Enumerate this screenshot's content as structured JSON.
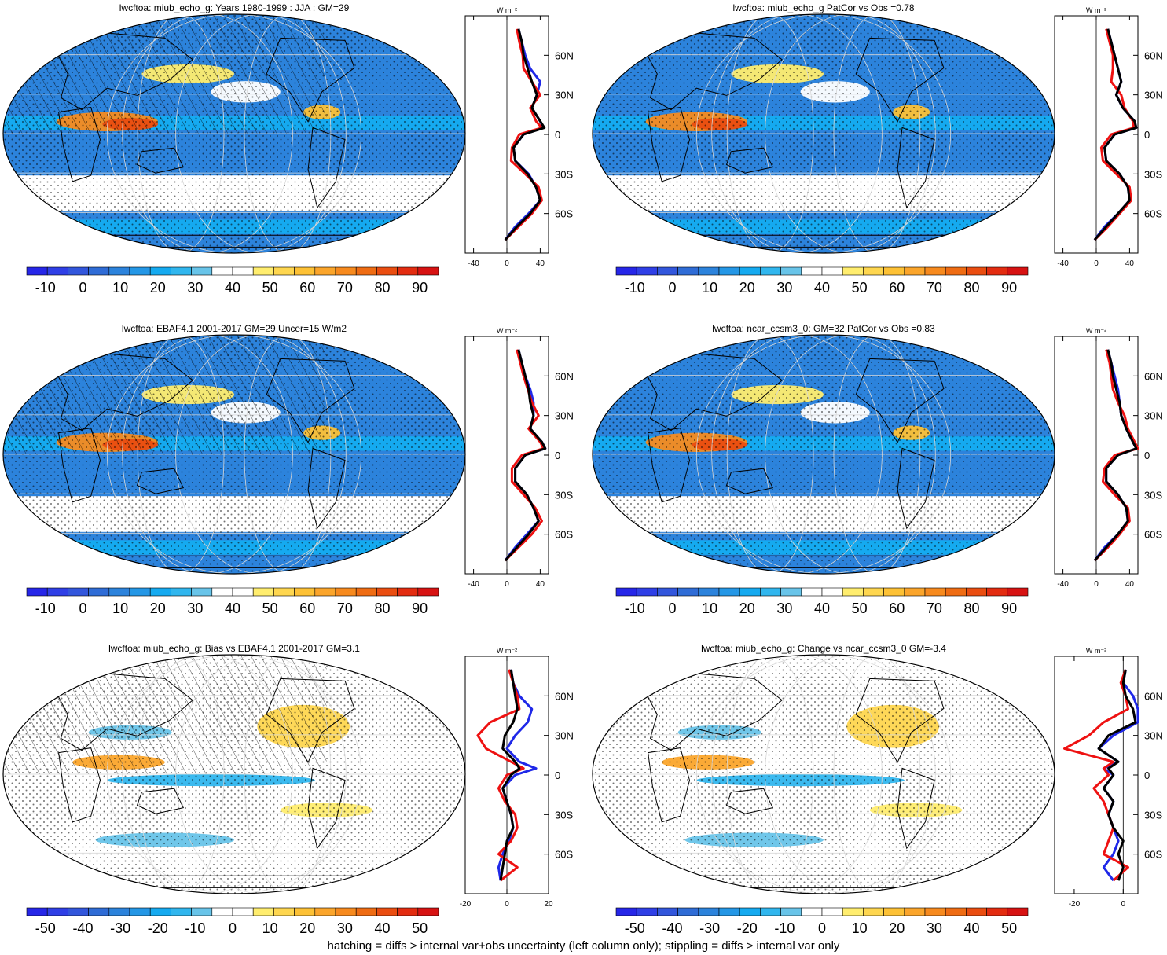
{
  "footer": "hatching = diffs > internal var+obs uncertainty (left column only); stippling = diffs > internal var only",
  "colors": {
    "obs": "#000000",
    "model_a": "#ee1111",
    "model_b": "#1f28e8",
    "grid": "#d8d8d8"
  },
  "palette_abs": [
    "#2626e8",
    "#2f3fe6",
    "#3256dc",
    "#2f6cd6",
    "#2c83dc",
    "#2497e6",
    "#15aaf0",
    "#30b6ee",
    "#68c4e9",
    "#ffffff",
    "#ffffff",
    "#ffed6e",
    "#fed64f",
    "#fdc135",
    "#fba52b",
    "#f78a1e",
    "#ef6c13",
    "#ea4d10",
    "#e32c10",
    "#d71212"
  ],
  "palette_diff": [
    "#2626e8",
    "#2f3fe6",
    "#3256dc",
    "#2f6cd6",
    "#2c83dc",
    "#2497e6",
    "#15aaf0",
    "#30b6ee",
    "#68c4e9",
    "#ffffff",
    "#ffffff",
    "#ffed6e",
    "#fed64f",
    "#fdc135",
    "#fba52b",
    "#f78a1e",
    "#ef6c13",
    "#ea4d10",
    "#e32c10",
    "#d71212"
  ],
  "chart_data": [
    {
      "id": "p1",
      "type": "heatmap",
      "title": "lwcftoa: miub_echo_g: Years 1980-1999 : JJA : GM=29",
      "colorbar": {
        "ticks": [
          "-10",
          "0",
          "10",
          "20",
          "30",
          "40",
          "50",
          "60",
          "70",
          "80",
          "90"
        ],
        "range": [
          -15,
          95
        ]
      },
      "profile": {
        "xlabel": "W m⁻²",
        "xticks": [
          "-40",
          "0",
          "40"
        ],
        "xlim": [
          -50,
          50
        ],
        "yticks": [
          "60N",
          "30N",
          "0",
          "30S",
          "60S"
        ],
        "lat": [
          80,
          70,
          60,
          50,
          40,
          30,
          20,
          10,
          5,
          0,
          -10,
          -20,
          -30,
          -40,
          -50,
          -60,
          -70,
          -80
        ],
        "series": [
          {
            "name": "obs",
            "values": [
              14,
              18,
              20,
              25,
              30,
              36,
              30,
              40,
              45,
              20,
              8,
              10,
              25,
              35,
              40,
              28,
              12,
              -2
            ]
          },
          {
            "name": "model_a",
            "values": [
              12,
              15,
              19,
              20,
              30,
              40,
              28,
              35,
              42,
              15,
              6,
              5,
              22,
              38,
              42,
              30,
              14,
              -2
            ]
          },
          {
            "name": "model_b",
            "values": [
              14,
              18,
              22,
              28,
              40,
              36,
              30,
              40,
              44,
              20,
              8,
              10,
              26,
              35,
              40,
              26,
              10,
              -2
            ]
          }
        ]
      }
    },
    {
      "id": "p2",
      "type": "heatmap",
      "title": "lwcftoa: miub_echo_g PatCor vs Obs =0.78",
      "colorbar": {
        "ticks": [
          "-10",
          "0",
          "10",
          "20",
          "30",
          "40",
          "50",
          "60",
          "70",
          "80",
          "90"
        ],
        "range": [
          -15,
          95
        ]
      },
      "profile": {
        "xlabel": "W m⁻²",
        "xticks": [
          "-40",
          "0",
          "40"
        ],
        "xlim": [
          -50,
          50
        ],
        "yticks": [
          "60N",
          "30N",
          "0",
          "30S",
          "60S"
        ],
        "lat": [
          80,
          70,
          60,
          50,
          40,
          30,
          20,
          10,
          5,
          0,
          -10,
          -20,
          -30,
          -40,
          -50,
          -60,
          -70,
          -80
        ],
        "series": [
          {
            "name": "obs",
            "values": [
              14,
              18,
              22,
              26,
              30,
              24,
              32,
              46,
              48,
              22,
              10,
              12,
              28,
              38,
              40,
              26,
              12,
              -2
            ]
          },
          {
            "name": "model_a",
            "values": [
              12,
              16,
              20,
              20,
              18,
              30,
              34,
              44,
              45,
              18,
              6,
              8,
              24,
              40,
              42,
              28,
              14,
              -2
            ]
          },
          {
            "name": "model_b",
            "values": [
              14,
              18,
              22,
              26,
              30,
              24,
              32,
              46,
              48,
              22,
              10,
              12,
              28,
              38,
              40,
              26,
              10,
              -2
            ]
          }
        ]
      }
    },
    {
      "id": "p3",
      "type": "heatmap",
      "title": "lwcftoa: EBAF4.1 2001-2017 GM=29 Uncer=15 W/m2",
      "colorbar": {
        "ticks": [
          "-10",
          "0",
          "10",
          "20",
          "30",
          "40",
          "50",
          "60",
          "70",
          "80",
          "90"
        ],
        "range": [
          -15,
          95
        ]
      },
      "profile": {
        "xlabel": "W m⁻²",
        "xticks": [
          "-40",
          "0",
          "40"
        ],
        "xlim": [
          -50,
          50
        ],
        "yticks": [
          "60N",
          "30N",
          "0",
          "30S",
          "60S"
        ],
        "lat": [
          80,
          70,
          60,
          50,
          40,
          30,
          20,
          10,
          5,
          0,
          -10,
          -20,
          -30,
          -40,
          -50,
          -60,
          -70,
          -80
        ],
        "series": [
          {
            "name": "obs",
            "values": [
              14,
              18,
              22,
              26,
              28,
              32,
              28,
              42,
              46,
              22,
              10,
              10,
              24,
              32,
              38,
              26,
              12,
              -2
            ]
          },
          {
            "name": "model_a",
            "values": [
              12,
              16,
              20,
              25,
              30,
              38,
              26,
              40,
              44,
              18,
              6,
              6,
              20,
              34,
              42,
              30,
              14,
              -2
            ]
          },
          {
            "name": "model_b",
            "values": [
              14,
              18,
              22,
              28,
              32,
              32,
              28,
              42,
              46,
              22,
              10,
              10,
              24,
              32,
              38,
              24,
              10,
              -2
            ]
          }
        ]
      }
    },
    {
      "id": "p4",
      "type": "heatmap",
      "title": "lwcftoa: ncar_ccsm3_0: GM=32 PatCor vs Obs =0.83",
      "colorbar": {
        "ticks": [
          "-10",
          "0",
          "10",
          "20",
          "30",
          "40",
          "50",
          "60",
          "70",
          "80",
          "90"
        ],
        "range": [
          -15,
          95
        ]
      },
      "profile": {
        "xlabel": "W m⁻²",
        "xticks": [
          "-40",
          "0",
          "40"
        ],
        "xlim": [
          -50,
          50
        ],
        "yticks": [
          "60N",
          "30N",
          "0",
          "30S",
          "60S"
        ],
        "lat": [
          80,
          70,
          60,
          50,
          40,
          30,
          20,
          10,
          5,
          0,
          -10,
          -20,
          -30,
          -40,
          -50,
          -60,
          -70,
          -80
        ],
        "series": [
          {
            "name": "obs",
            "values": [
              14,
              18,
              20,
              24,
              28,
              30,
              36,
              44,
              48,
              26,
              12,
              12,
              26,
              36,
              38,
              26,
              12,
              -2
            ]
          },
          {
            "name": "model_a",
            "values": [
              12,
              16,
              18,
              20,
              26,
              34,
              38,
              46,
              50,
              22,
              10,
              8,
              22,
              38,
              40,
              28,
              14,
              -2
            ]
          },
          {
            "name": "model_b",
            "values": [
              14,
              18,
              22,
              26,
              28,
              30,
              36,
              44,
              48,
              26,
              12,
              12,
              26,
              36,
              38,
              26,
              10,
              -2
            ]
          }
        ]
      }
    },
    {
      "id": "p5",
      "type": "heatmap",
      "title": "lwcftoa: miub_echo_g: Bias vs EBAF4.1 2001-2017 GM=3.1",
      "colorbar": {
        "ticks": [
          "-50",
          "-40",
          "-30",
          "-20",
          "-10",
          "0",
          "10",
          "20",
          "30",
          "40",
          "50"
        ],
        "range": [
          -55,
          55
        ]
      },
      "profile": {
        "xlabel": "W m⁻²",
        "xticks": [
          "-20",
          "0",
          "20"
        ],
        "xlim": [
          -20,
          20
        ],
        "yticks": [
          "60N",
          "30N",
          "0",
          "30S",
          "60S"
        ],
        "lat": [
          80,
          70,
          60,
          50,
          40,
          30,
          20,
          10,
          5,
          0,
          -10,
          -20,
          -30,
          -40,
          -50,
          -60,
          -70,
          -80
        ],
        "series": [
          {
            "name": "obs",
            "values": [
              2,
              3,
              4,
              5,
              3,
              -1,
              -2,
              4,
              6,
              2,
              -2,
              0,
              2,
              3,
              0,
              -1,
              -2,
              -3
            ]
          },
          {
            "name": "model_a",
            "values": [
              1,
              3,
              5,
              6,
              -8,
              -14,
              -10,
              2,
              8,
              0,
              -4,
              -1,
              4,
              5,
              2,
              -4,
              5,
              -3
            ]
          },
          {
            "name": "model_b",
            "values": [
              2,
              3,
              6,
              12,
              10,
              4,
              0,
              6,
              14,
              4,
              -2,
              0,
              2,
              3,
              1,
              -2,
              -4,
              -3
            ]
          }
        ]
      }
    },
    {
      "id": "p6",
      "type": "heatmap",
      "title": "lwcftoa: miub_echo_g: Change vs ncar_ccsm3_0 GM=-3.4",
      "colorbar": {
        "ticks": [
          "-50",
          "-40",
          "-30",
          "-20",
          "-10",
          "0",
          "10",
          "20",
          "30",
          "40",
          "50"
        ],
        "range": [
          -55,
          55
        ]
      },
      "profile": {
        "xlabel": "W m⁻²",
        "xticks": [
          "-20",
          "0"
        ],
        "xlim": [
          -28,
          6
        ],
        "yticks": [
          "60N",
          "30N",
          "0",
          "30S",
          "60S"
        ],
        "lat": [
          80,
          70,
          60,
          50,
          40,
          30,
          20,
          10,
          5,
          0,
          -10,
          -20,
          -30,
          -40,
          -50,
          -60,
          -70,
          -80
        ],
        "series": [
          {
            "name": "obs",
            "values": [
              1,
              0,
              1,
              4,
              5,
              -6,
              -10,
              -2,
              -6,
              -4,
              -8,
              -4,
              -6,
              -4,
              0,
              -2,
              0,
              -2
            ]
          },
          {
            "name": "model_a",
            "values": [
              1,
              -1,
              1,
              2,
              -8,
              -14,
              -24,
              -4,
              -8,
              -6,
              -12,
              -8,
              -6,
              -4,
              -6,
              -8,
              2,
              -4
            ]
          },
          {
            "name": "model_b",
            "values": [
              1,
              0,
              4,
              6,
              6,
              -4,
              -10,
              -2,
              -8,
              -4,
              -8,
              -4,
              -6,
              -4,
              -2,
              -4,
              -8,
              -4
            ]
          }
        ]
      }
    }
  ]
}
